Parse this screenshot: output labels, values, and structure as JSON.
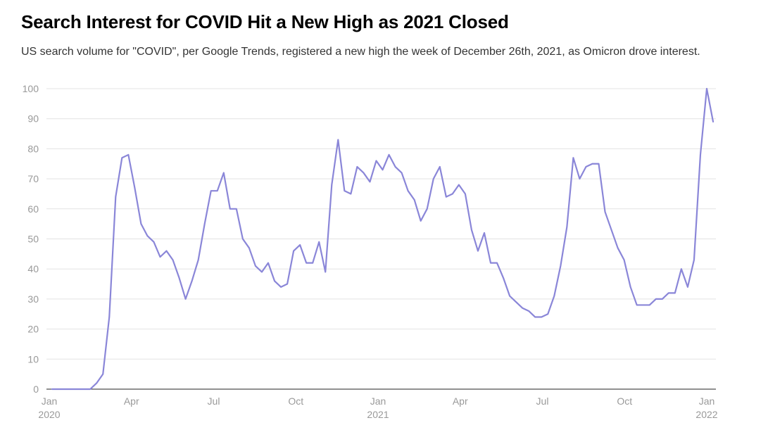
{
  "chart_data": {
    "type": "line",
    "title": "Search Interest for COVID Hit a New High as 2021 Closed",
    "subtitle": "US search volume for \"COVID\", per Google Trends, registered a new high the week of December 26th, 2021, as Omicron drove interest.",
    "xlabel": "",
    "ylabel": "",
    "ylim": [
      0,
      100
    ],
    "yticks": [
      0,
      10,
      20,
      30,
      40,
      50,
      60,
      70,
      80,
      90,
      100
    ],
    "grid": true,
    "legend": "none",
    "xticks": [
      {
        "week": 0,
        "label": "Jan",
        "sublabel": "2020"
      },
      {
        "week": 13,
        "label": "Apr",
        "sublabel": ""
      },
      {
        "week": 26,
        "label": "Jul",
        "sublabel": ""
      },
      {
        "week": 39,
        "label": "Oct",
        "sublabel": ""
      },
      {
        "week": 52,
        "label": "Jan",
        "sublabel": "2021"
      },
      {
        "week": 65,
        "label": "Apr",
        "sublabel": ""
      },
      {
        "week": 78,
        "label": "Jul",
        "sublabel": ""
      },
      {
        "week": 91,
        "label": "Oct",
        "sublabel": ""
      },
      {
        "week": 104,
        "label": "Jan",
        "sublabel": "2022"
      }
    ],
    "series": [
      {
        "color": "#8a86d8",
        "values": [
          0,
          0,
          0,
          0,
          0,
          0,
          0,
          2,
          5,
          24,
          64,
          77,
          78,
          67,
          55,
          51,
          49,
          44,
          46,
          43,
          37,
          30,
          36,
          43,
          55,
          66,
          66,
          72,
          60,
          60,
          50,
          47,
          41,
          39,
          42,
          36,
          34,
          35,
          46,
          48,
          42,
          42,
          49,
          39,
          68,
          83,
          66,
          65,
          74,
          72,
          69,
          76,
          73,
          78,
          74,
          72,
          66,
          63,
          56,
          60,
          70,
          74,
          64,
          65,
          68,
          65,
          53,
          46,
          52,
          42,
          42,
          37,
          31,
          29,
          27,
          26,
          24,
          24,
          25,
          31,
          41,
          54,
          77,
          70,
          74,
          75,
          75,
          59,
          53,
          47,
          43,
          34,
          28,
          28,
          28,
          30,
          30,
          32,
          32,
          40,
          34,
          43,
          78,
          100,
          89
        ]
      }
    ]
  }
}
